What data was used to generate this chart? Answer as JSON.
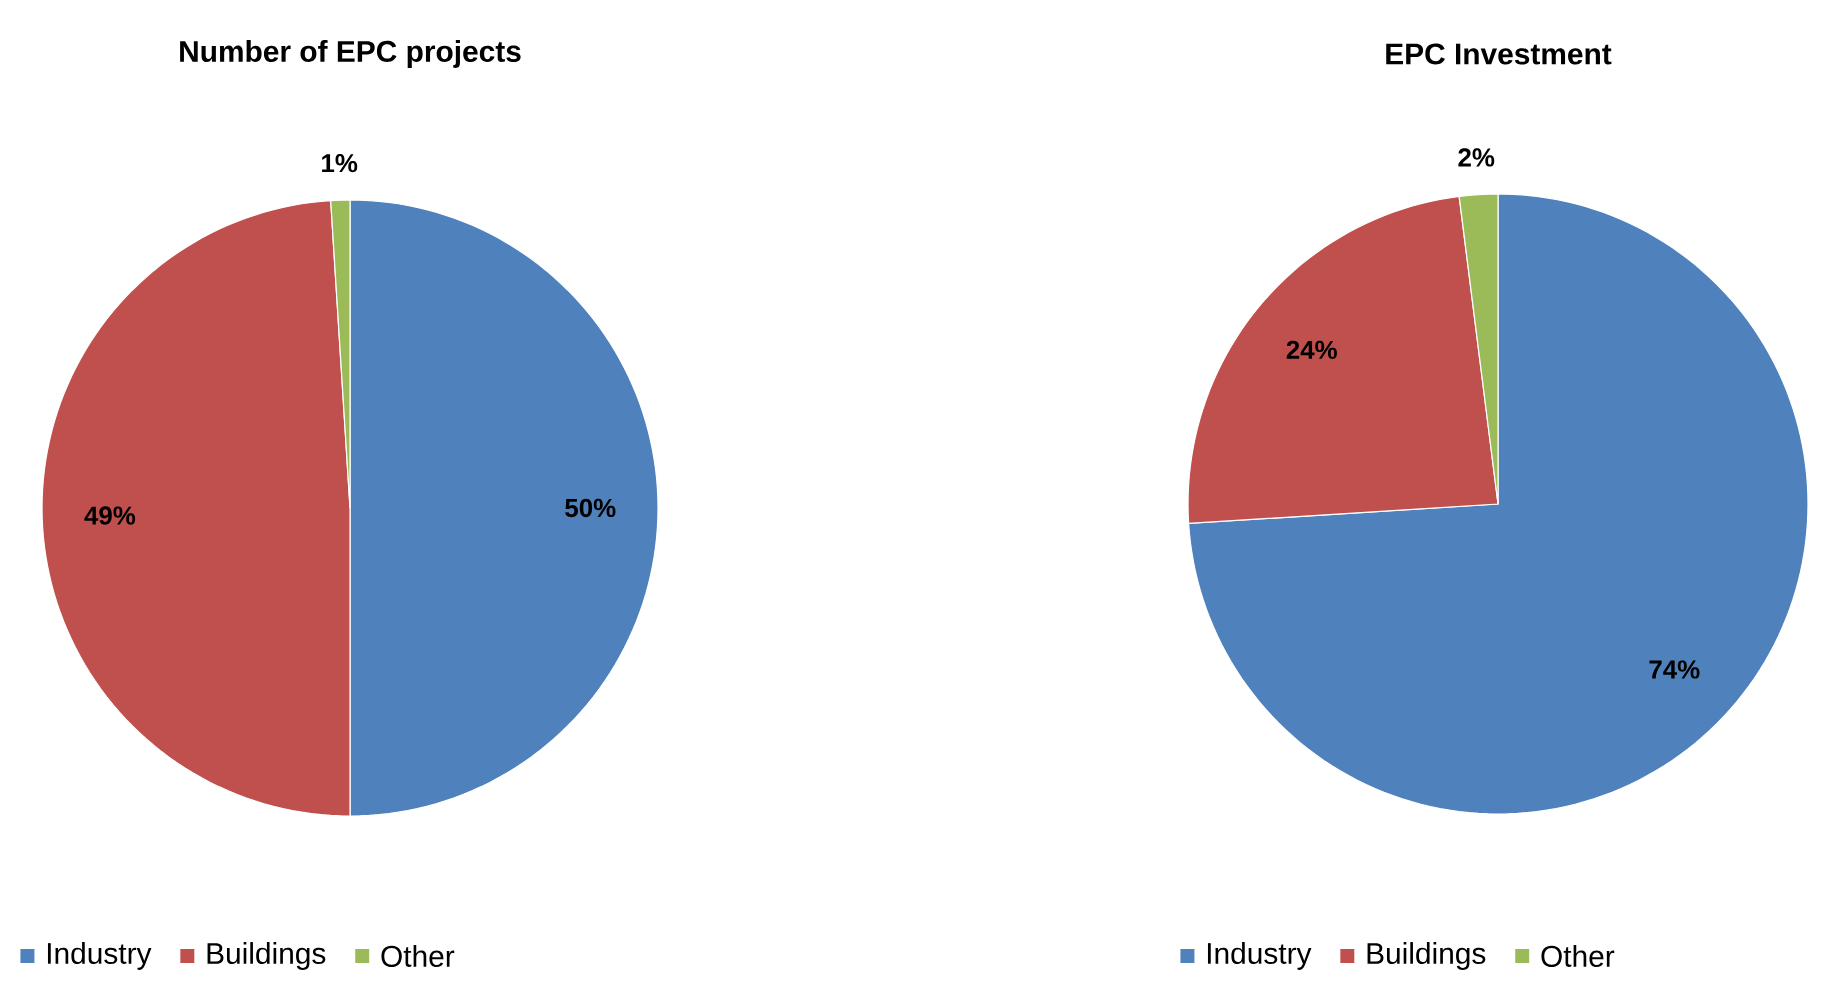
{
  "chart_data": [
    {
      "type": "pie",
      "title": "Number of EPC projects",
      "categories": [
        "Industry",
        "Buildings",
        "Other"
      ],
      "values": [
        50,
        49,
        1
      ],
      "colors": [
        "#4f81bd",
        "#c0504d",
        "#9bbb59"
      ],
      "value_labels": [
        "50%",
        "49%",
        "1%"
      ],
      "legend": "bottom"
    },
    {
      "type": "pie",
      "title": "EPC Investment",
      "categories": [
        "Industry",
        "Buildings",
        "Other"
      ],
      "values": [
        74,
        24,
        2
      ],
      "colors": [
        "#4f81bd",
        "#c0504d",
        "#9bbb59"
      ],
      "value_labels": [
        "74%",
        "24%",
        "2%"
      ],
      "legend": "bottom"
    }
  ]
}
